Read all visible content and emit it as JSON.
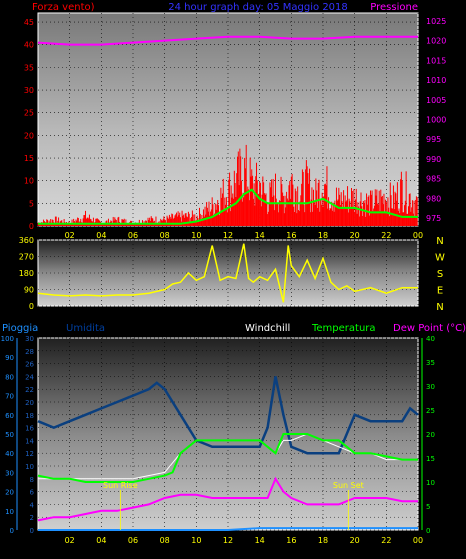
{
  "colors": {
    "background": "#000000",
    "wind": "#ff0000",
    "wind_avg": "#00ff00",
    "pressure": "#ff00ff",
    "direction": "#ffff00",
    "rain": "#1e90ff",
    "humidity": "#003f7f",
    "windchill": "#ffffff",
    "temperature": "#00ff00",
    "dewpoint": "#ff00ff",
    "tick_x": "#ffff00"
  },
  "header": {
    "left_label": "Forza vento)",
    "title": "24 hour graph day: 05 Maggio 2018",
    "right_label": "Pressione"
  },
  "direction_labels": [
    "N",
    "W",
    "S",
    "E",
    "N"
  ],
  "bottom_labels": {
    "rain": "Pioggia",
    "humidity": "Umidita",
    "windchill": "Windchill",
    "temperature": "Temperatura",
    "dewpoint": "Dew Point (°C)"
  },
  "annotations": {
    "sunrise": "Sun Rise",
    "sunset": "Sun Set"
  },
  "chart_data": [
    {
      "type": "line",
      "title": "24 hour graph day: 05 Maggio 2018",
      "x_ticks": [
        "02",
        "04",
        "06",
        "08",
        "10",
        "12",
        "14",
        "16",
        "18",
        "20",
        "22",
        "00"
      ],
      "y_left_ticks": [
        "0",
        "5",
        "10",
        "15",
        "20",
        "25",
        "30",
        "35",
        "40",
        "45"
      ],
      "y_right_ticks": [
        "975",
        "980",
        "985",
        "990",
        "995",
        "1000",
        "1005",
        "1010",
        "1015",
        "1020",
        "1025"
      ],
      "ylim_left": [
        0,
        47
      ],
      "ylim_right": [
        973,
        1027
      ],
      "series": [
        {
          "name": "Forza vento)",
          "axis": "left",
          "x": [
            0,
            1,
            2,
            3,
            4,
            5,
            6,
            7,
            8,
            9,
            10,
            11,
            11.5,
            12,
            12.5,
            13,
            13.3,
            13.6,
            14,
            14.5,
            15,
            15.5,
            16,
            16.5,
            17,
            17.5,
            18,
            18.5,
            19,
            20,
            21,
            22,
            22.5,
            23,
            23.5,
            24
          ],
          "values": [
            1,
            2,
            1,
            3,
            1,
            2,
            1,
            2,
            2,
            3,
            3,
            6,
            9,
            11,
            14,
            17,
            15,
            12,
            13,
            8,
            11,
            9,
            14,
            10,
            13,
            9,
            14,
            10,
            8,
            9,
            7,
            9,
            8,
            12,
            9,
            7
          ]
        },
        {
          "name": "",
          "axis": "left",
          "x": [
            0,
            2,
            4,
            6,
            8,
            9,
            10,
            11,
            11.5,
            12,
            12.5,
            13,
            13.5,
            14,
            14.5,
            15,
            16,
            17,
            18,
            19,
            20,
            21,
            22,
            23,
            24
          ],
          "values": [
            0.5,
            0.5,
            0.5,
            0.5,
            0.5,
            0.5,
            1,
            2,
            3,
            4,
            5,
            7,
            8,
            6,
            5,
            5,
            5,
            5,
            6,
            4,
            4,
            3,
            3,
            2,
            2
          ]
        },
        {
          "name": "Pressione",
          "axis": "right",
          "x": [
            0,
            2,
            4,
            6,
            8,
            10,
            12,
            14,
            16,
            18,
            20,
            22,
            24
          ],
          "values": [
            1019.5,
            1019,
            1019,
            1019.5,
            1020,
            1020.5,
            1021,
            1021,
            1020.5,
            1020.5,
            1021,
            1021,
            1021
          ]
        }
      ]
    },
    {
      "type": "line",
      "x_ticks": [],
      "y_ticks": [
        "0",
        "90",
        "180",
        "270",
        "360"
      ],
      "ylim": [
        0,
        360
      ],
      "series": [
        {
          "name": "N W S E N",
          "x": [
            0,
            1,
            2,
            3,
            4,
            5,
            6,
            7,
            8,
            8.5,
            9,
            9.5,
            10,
            10.5,
            11,
            11.5,
            12,
            12.5,
            13,
            13.3,
            13.6,
            14,
            14.5,
            15,
            15.5,
            15.8,
            16,
            16.5,
            17,
            17.5,
            18,
            18.5,
            19,
            19.5,
            20,
            21,
            22,
            23,
            24
          ],
          "values": [
            70,
            60,
            55,
            60,
            55,
            60,
            60,
            70,
            90,
            120,
            130,
            180,
            140,
            160,
            330,
            140,
            160,
            150,
            340,
            150,
            130,
            160,
            140,
            200,
            20,
            330,
            220,
            160,
            250,
            150,
            260,
            130,
            90,
            110,
            80,
            100,
            70,
            100,
            100
          ]
        }
      ]
    },
    {
      "type": "line",
      "x_ticks": [
        "02",
        "04",
        "06",
        "08",
        "10",
        "12",
        "14",
        "16",
        "18",
        "20",
        "22",
        "00"
      ],
      "y_rain_ticks": [
        "0",
        "10",
        "20",
        "30",
        "40",
        "50",
        "60",
        "70",
        "80",
        "90",
        "100"
      ],
      "y_left_ticks": [
        "0",
        "2",
        "4",
        "6",
        "8",
        "10",
        "12",
        "14",
        "16",
        "18",
        "20",
        "22",
        "24",
        "26",
        "28",
        "30"
      ],
      "y_right_ticks": [
        "0",
        "5",
        "10",
        "15",
        "20",
        "25",
        "30",
        "35",
        "40"
      ],
      "ylim_left": [
        0,
        30
      ],
      "ylim_right": [
        0,
        40
      ],
      "series": [
        {
          "name": "Pioggia",
          "axis": "left",
          "x": [
            0,
            12,
            14,
            24
          ],
          "values": [
            0,
            0,
            0.3,
            0.3
          ]
        },
        {
          "name": "Umidita",
          "axis": "left",
          "x": [
            0,
            1,
            2,
            3,
            4,
            5,
            6,
            7,
            7.5,
            8,
            8.5,
            9,
            10,
            11,
            12,
            13,
            14,
            14.5,
            15,
            15.5,
            16,
            17,
            18,
            19,
            20,
            21,
            22,
            23,
            23.5,
            24
          ],
          "values": [
            17,
            16,
            17,
            18,
            19,
            20,
            21,
            22,
            23,
            22,
            20,
            18,
            14,
            13,
            13,
            13,
            13,
            16,
            24,
            18,
            13,
            12,
            12,
            12,
            18,
            17,
            17,
            17,
            19,
            18
          ]
        },
        {
          "name": "Windchill",
          "axis": "left",
          "x": [
            0,
            2,
            4,
            6,
            8,
            9,
            9.5,
            10,
            11,
            12,
            13,
            14,
            14.5,
            15,
            15.5,
            16,
            17,
            18,
            19,
            20,
            21,
            22,
            23,
            24
          ],
          "values": [
            8,
            8,
            8,
            8,
            9,
            12,
            13,
            14,
            14,
            14,
            14,
            14,
            13,
            12,
            14,
            14,
            15,
            14,
            13,
            12,
            12,
            11,
            11,
            11
          ]
        },
        {
          "name": "Temperatura",
          "axis": "left",
          "x": [
            0,
            1,
            2,
            3,
            4,
            5,
            6,
            7,
            8,
            8.5,
            9,
            9.5,
            10,
            11,
            12,
            13,
            14,
            14.5,
            15,
            15.5,
            16,
            17,
            18,
            19,
            20,
            21,
            22,
            23,
            24
          ],
          "values": [
            8.5,
            8,
            8,
            7.5,
            7.5,
            7.5,
            7.5,
            8,
            8.5,
            9,
            12,
            13,
            14,
            14,
            14,
            14,
            14,
            13,
            12,
            15,
            15,
            15,
            14,
            14,
            12,
            12,
            11.5,
            11,
            11
          ]
        },
        {
          "name": "Dew Point (°C)",
          "axis": "left",
          "x": [
            0,
            1,
            2,
            3,
            4,
            5,
            6,
            7,
            8,
            9,
            10,
            11,
            12,
            13,
            14,
            14.5,
            15,
            15.5,
            16,
            17,
            18,
            19,
            20,
            21,
            22,
            23,
            24
          ],
          "values": [
            1.5,
            2,
            2,
            2.5,
            3,
            3,
            3.5,
            4,
            5,
            5.5,
            5.5,
            5,
            5,
            5,
            5,
            5,
            8,
            6,
            5,
            4,
            4,
            4,
            5,
            5,
            5,
            4.5,
            4.5
          ]
        }
      ]
    }
  ]
}
